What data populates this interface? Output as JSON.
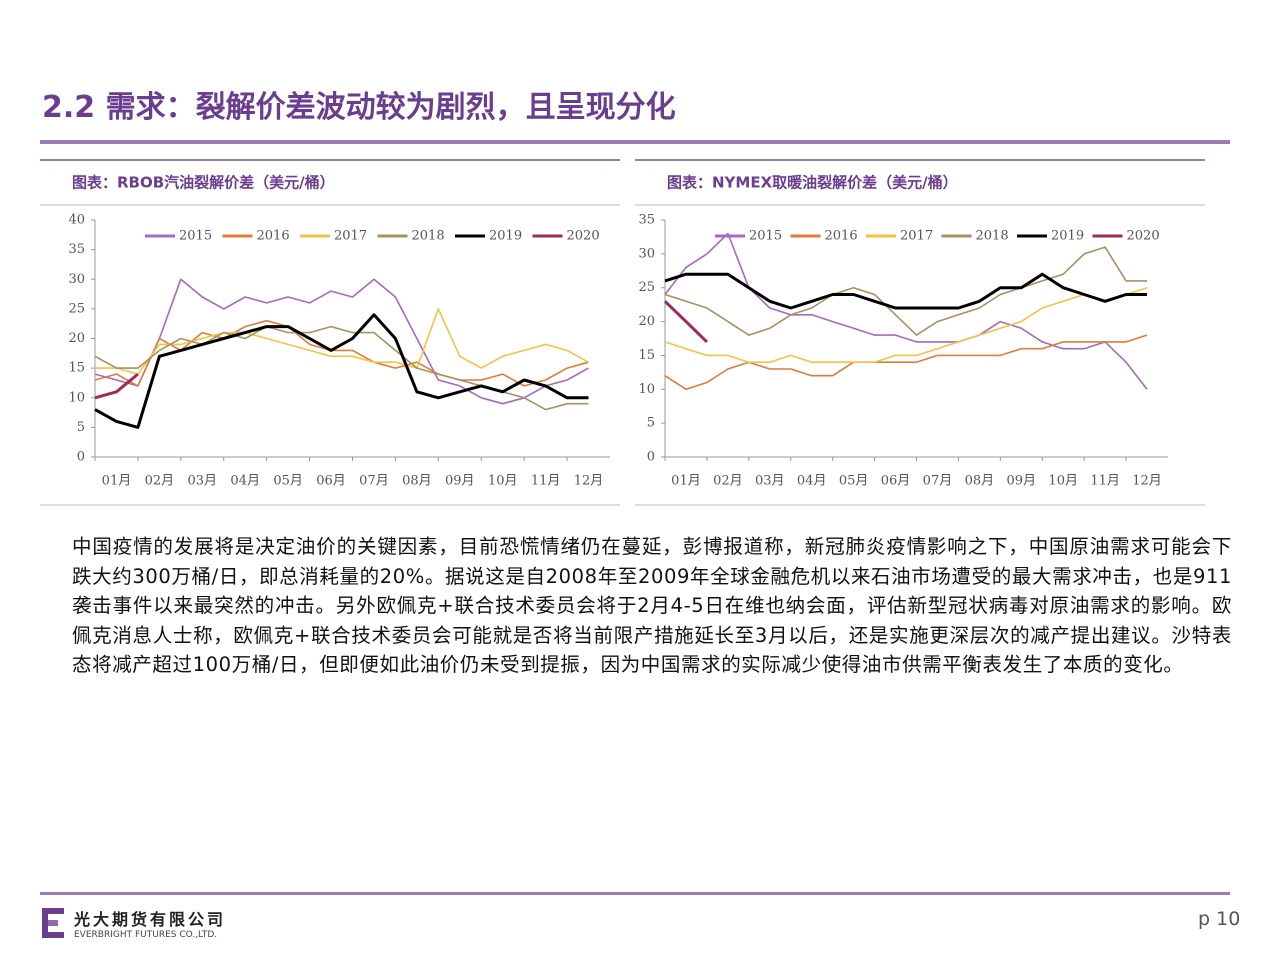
{
  "page": {
    "title": "2.2 需求：裂解价差波动较为剧烈，且呈现分化",
    "body": "中国疫情的发展将是决定油价的关键因素，目前恐慌情绪仍在蔓延，彭博报道称，新冠肺炎疫情影响之下，中国原油需求可能会下跌大约300万桶/日，即总消耗量的20%。据说这是自2008年至2009年全球金融危机以来石油市场遭受的最大需求冲击，也是911袭击事件以来最突然的冲击。另外欧佩克+联合技术委员会将于2月4-5日在维也纳会面，评估新型冠状病毒对原油需求的影响。欧佩克消息人士称，欧佩克+联合技术委员会可能就是否将当前限产措施延长至3月以后，还是实施更深层次的减产提出建议。沙特表态将减产超过100万桶/日，但即便如此油价仍未受到提振，因为中国需求的实际减少使得油市供需平衡表发生了本质的变化。",
    "company": "光大期货有限公司",
    "company_en": "EVERBRIGHT FUTURES CO.,LTD.",
    "page_number": "p 10"
  },
  "chart_data": [
    {
      "type": "line",
      "title": "图表：RBOB汽油裂解价差（美元/桶）",
      "legend": "top",
      "categories": [
        "01月",
        null,
        "02月",
        null,
        "03月",
        null,
        "04月",
        null,
        "05月",
        null,
        "06月",
        null,
        "07月",
        null,
        "08月",
        null,
        "09月",
        null,
        "10月",
        null,
        "11月",
        null,
        "12月",
        null
      ],
      "ylim": [
        0,
        40
      ],
      "yticks": [
        0,
        5,
        10,
        15,
        20,
        25,
        30,
        35,
        40
      ],
      "series": [
        {
          "name": "2015",
          "color": "#a569bd",
          "values": [
            14,
            13,
            12,
            20,
            30,
            27,
            25,
            27,
            26,
            27,
            26,
            28,
            27,
            30,
            27,
            20,
            13,
            12,
            10,
            9,
            10,
            12,
            13,
            15
          ]
        },
        {
          "name": "2016",
          "color": "#e07b39",
          "values": [
            13,
            14,
            12,
            20,
            18,
            21,
            20,
            22,
            23,
            22,
            19,
            18,
            18,
            16,
            15,
            16,
            14,
            13,
            13,
            14,
            12,
            13,
            15,
            16
          ]
        },
        {
          "name": "2017",
          "color": "#f5c242",
          "values": [
            15,
            15,
            14,
            19,
            19,
            20,
            21,
            21,
            20,
            19,
            18,
            17,
            17,
            16,
            16,
            15,
            25,
            17,
            15,
            17,
            18,
            19,
            18,
            16
          ]
        },
        {
          "name": "2018",
          "color": "#a89060",
          "values": [
            17,
            15,
            15,
            18,
            20,
            19,
            21,
            20,
            22,
            21,
            21,
            22,
            21,
            21,
            18,
            15,
            14,
            13,
            12,
            11,
            10,
            8,
            9,
            9
          ]
        },
        {
          "name": "2019",
          "color": "#000000",
          "values": [
            8,
            6,
            5,
            17,
            18,
            19,
            20,
            21,
            22,
            22,
            20,
            18,
            20,
            24,
            20,
            11,
            10,
            11,
            12,
            11,
            13,
            12,
            10,
            10
          ]
        },
        {
          "name": "2020",
          "color": "#9e2a5a",
          "values": [
            10,
            11,
            14,
            null,
            null,
            null,
            null,
            null,
            null,
            null,
            null,
            null,
            null,
            null,
            null,
            null,
            null,
            null,
            null,
            null,
            null,
            null,
            null,
            null
          ]
        }
      ]
    },
    {
      "type": "line",
      "title": "图表：NYMEX取暖油裂解价差（美元/桶）",
      "legend": "top",
      "categories": [
        "01月",
        null,
        "02月",
        null,
        "03月",
        null,
        "04月",
        null,
        "05月",
        null,
        "06月",
        null,
        "07月",
        null,
        "08月",
        null,
        "09月",
        null,
        "10月",
        null,
        "11月",
        null,
        "12月",
        null
      ],
      "ylim": [
        0,
        35
      ],
      "yticks": [
        0,
        5,
        10,
        15,
        20,
        25,
        30,
        35
      ],
      "series": [
        {
          "name": "2015",
          "color": "#a569bd",
          "values": [
            24,
            28,
            30,
            33,
            25,
            22,
            21,
            21,
            20,
            19,
            18,
            18,
            17,
            17,
            17,
            18,
            20,
            19,
            17,
            16,
            16,
            17,
            14,
            10
          ]
        },
        {
          "name": "2016",
          "color": "#e07b39",
          "values": [
            12,
            10,
            11,
            13,
            14,
            13,
            13,
            12,
            12,
            14,
            14,
            14,
            14,
            15,
            15,
            15,
            15,
            16,
            16,
            17,
            17,
            17,
            17,
            18
          ]
        },
        {
          "name": "2017",
          "color": "#f5c242",
          "values": [
            17,
            16,
            15,
            15,
            14,
            14,
            15,
            14,
            14,
            14,
            14,
            15,
            15,
            16,
            17,
            18,
            19,
            20,
            22,
            23,
            24,
            23,
            24,
            25
          ]
        },
        {
          "name": "2018",
          "color": "#a89060",
          "values": [
            24,
            23,
            22,
            20,
            18,
            19,
            21,
            22,
            24,
            25,
            24,
            21,
            18,
            20,
            21,
            22,
            24,
            25,
            26,
            27,
            30,
            31,
            26,
            26
          ]
        },
        {
          "name": "2019",
          "color": "#000000",
          "values": [
            26,
            27,
            27,
            27,
            25,
            23,
            22,
            23,
            24,
            24,
            23,
            22,
            22,
            22,
            22,
            23,
            25,
            25,
            27,
            25,
            24,
            23,
            24,
            24
          ]
        },
        {
          "name": "2020",
          "color": "#9e2a5a",
          "values": [
            23,
            20,
            17,
            null,
            null,
            null,
            null,
            null,
            null,
            null,
            null,
            null,
            null,
            null,
            null,
            null,
            null,
            null,
            null,
            null,
            null,
            null,
            null,
            null
          ]
        }
      ]
    }
  ]
}
